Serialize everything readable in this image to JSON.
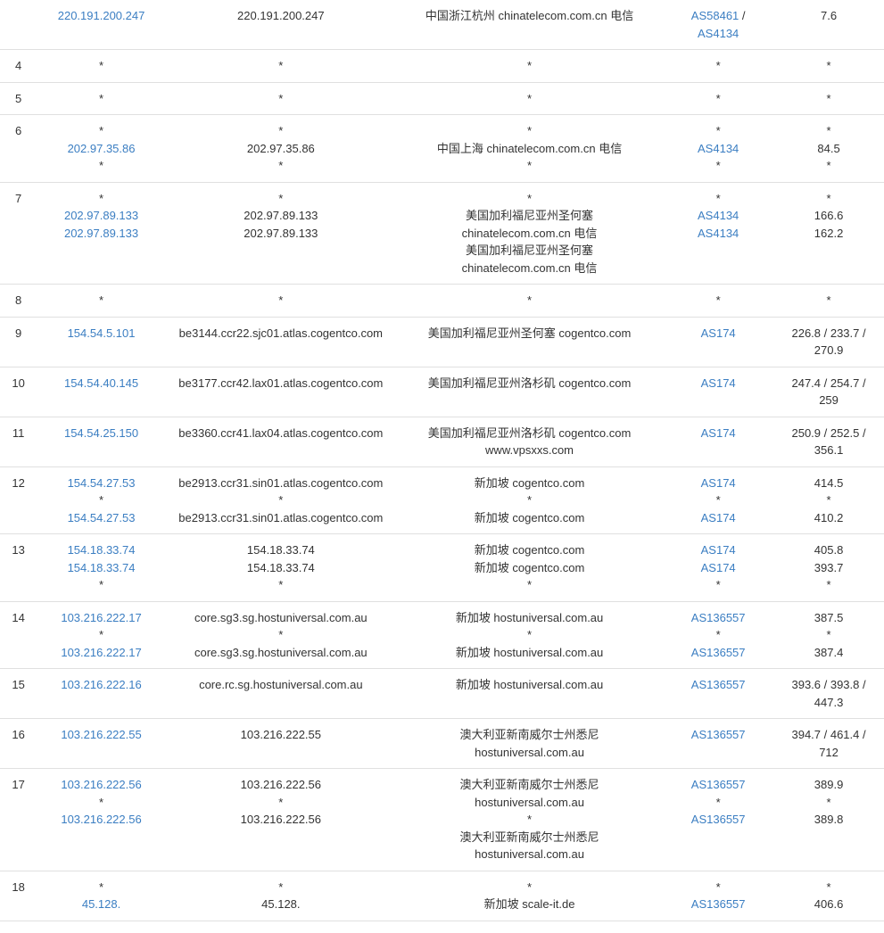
{
  "colors": {
    "link": "#3b7ec2",
    "border": "#e0e0e0",
    "text": "#333"
  },
  "rows": [
    {
      "hop": "",
      "ip": [
        {
          "t": "220.191.200.247",
          "link": true
        }
      ],
      "host": [
        {
          "t": "220.191.200.247"
        }
      ],
      "loc": [
        {
          "t": "中国浙江杭州 chinatelecom.com.cn 电信"
        }
      ],
      "as": [
        {
          "t": "AS58461",
          "link": true,
          "suffix": " /"
        },
        {
          "t": "AS4134",
          "link": true
        }
      ],
      "ms": [
        {
          "t": "7.6"
        }
      ]
    },
    {
      "hop": "4",
      "ip": [
        {
          "t": "*"
        }
      ],
      "host": [
        {
          "t": "*"
        }
      ],
      "loc": [
        {
          "t": "*"
        }
      ],
      "as": [
        {
          "t": "*"
        }
      ],
      "ms": [
        {
          "t": "*"
        }
      ]
    },
    {
      "hop": "5",
      "ip": [
        {
          "t": "*"
        }
      ],
      "host": [
        {
          "t": "*"
        }
      ],
      "loc": [
        {
          "t": "*"
        }
      ],
      "as": [
        {
          "t": "*"
        }
      ],
      "ms": [
        {
          "t": "*"
        }
      ]
    },
    {
      "hop": "6",
      "ip": [
        {
          "t": "*"
        },
        {
          "t": "202.97.35.86",
          "link": true
        },
        {
          "t": "*"
        }
      ],
      "host": [
        {
          "t": "*"
        },
        {
          "t": "202.97.35.86"
        },
        {
          "t": "*"
        }
      ],
      "loc": [
        {
          "t": "*"
        },
        {
          "t": "中国上海 chinatelecom.com.cn 电信"
        },
        {
          "t": "*"
        }
      ],
      "as": [
        {
          "t": "*"
        },
        {
          "t": "AS4134",
          "link": true
        },
        {
          "t": "*"
        }
      ],
      "ms": [
        {
          "t": "*"
        },
        {
          "t": "84.5"
        },
        {
          "t": "*"
        }
      ]
    },
    {
      "hop": "7",
      "ip": [
        {
          "t": "*"
        },
        {
          "t": "202.97.89.133",
          "link": true
        },
        {
          "t": "202.97.89.133",
          "link": true
        }
      ],
      "host": [
        {
          "t": "*"
        },
        {
          "t": "202.97.89.133"
        },
        {
          "t": "202.97.89.133"
        }
      ],
      "loc": [
        {
          "t": "*"
        },
        {
          "t": "美国加利福尼亚州圣何塞"
        },
        {
          "t": "chinatelecom.com.cn 电信"
        },
        {
          "t": "美国加利福尼亚州圣何塞"
        },
        {
          "t": "chinatelecom.com.cn 电信"
        }
      ],
      "as": [
        {
          "t": "*"
        },
        {
          "t": "AS4134",
          "link": true
        },
        {
          "t": "AS4134",
          "link": true
        }
      ],
      "ms": [
        {
          "t": "*"
        },
        {
          "t": "166.6"
        },
        {
          "t": "162.2"
        }
      ]
    },
    {
      "hop": "8",
      "ip": [
        {
          "t": "*"
        }
      ],
      "host": [
        {
          "t": "*"
        }
      ],
      "loc": [
        {
          "t": "*"
        }
      ],
      "as": [
        {
          "t": "*"
        }
      ],
      "ms": [
        {
          "t": "*"
        }
      ]
    },
    {
      "hop": "9",
      "ip": [
        {
          "t": "154.54.5.101",
          "link": true
        }
      ],
      "host": [
        {
          "t": "be3144.ccr22.sjc01.atlas.cogentco.com"
        }
      ],
      "loc": [
        {
          "t": "美国加利福尼亚州圣何塞 cogentco.com"
        }
      ],
      "as": [
        {
          "t": "AS174",
          "link": true
        }
      ],
      "ms": [
        {
          "t": "226.8 / 233.7 /"
        },
        {
          "t": "270.9"
        }
      ]
    },
    {
      "hop": "10",
      "ip": [
        {
          "t": "154.54.40.145",
          "link": true
        }
      ],
      "host": [
        {
          "t": "be3177.ccr42.lax01.atlas.cogentco.com"
        }
      ],
      "loc": [
        {
          "t": "美国加利福尼亚州洛杉矶 cogentco.com"
        }
      ],
      "as": [
        {
          "t": "AS174",
          "link": true
        }
      ],
      "ms": [
        {
          "t": "247.4 / 254.7 /"
        },
        {
          "t": "259"
        }
      ]
    },
    {
      "hop": "11",
      "ip": [
        {
          "t": "154.54.25.150",
          "link": true
        }
      ],
      "host": [
        {
          "t": "be3360.ccr41.lax04.atlas.cogentco.com"
        }
      ],
      "loc": [
        {
          "t": "美国加利福尼亚州洛杉矶 cogentco.com"
        },
        {
          "t": "www.vpsxxs.com"
        }
      ],
      "as": [
        {
          "t": "AS174",
          "link": true
        }
      ],
      "ms": [
        {
          "t": "250.9 / 252.5 /"
        },
        {
          "t": "356.1"
        }
      ]
    },
    {
      "hop": "12",
      "ip": [
        {
          "t": "154.54.27.53",
          "link": true
        },
        {
          "t": "*"
        },
        {
          "t": "154.54.27.53",
          "link": true
        }
      ],
      "host": [
        {
          "t": "be2913.ccr31.sin01.atlas.cogentco.com"
        },
        {
          "t": "*"
        },
        {
          "t": "be2913.ccr31.sin01.atlas.cogentco.com"
        }
      ],
      "loc": [
        {
          "t": "新加坡 cogentco.com"
        },
        {
          "t": "*"
        },
        {
          "t": "新加坡 cogentco.com"
        }
      ],
      "as": [
        {
          "t": "AS174",
          "link": true
        },
        {
          "t": "*"
        },
        {
          "t": "AS174",
          "link": true
        }
      ],
      "ms": [
        {
          "t": "414.5"
        },
        {
          "t": "*"
        },
        {
          "t": "410.2"
        }
      ]
    },
    {
      "hop": "13",
      "ip": [
        {
          "t": "154.18.33.74",
          "link": true
        },
        {
          "t": "154.18.33.74",
          "link": true
        },
        {
          "t": "*"
        }
      ],
      "host": [
        {
          "t": "154.18.33.74"
        },
        {
          "t": "154.18.33.74"
        },
        {
          "t": "*"
        }
      ],
      "loc": [
        {
          "t": "新加坡 cogentco.com"
        },
        {
          "t": "新加坡 cogentco.com"
        },
        {
          "t": "*"
        }
      ],
      "as": [
        {
          "t": "AS174",
          "link": true
        },
        {
          "t": "AS174",
          "link": true
        },
        {
          "t": "*"
        }
      ],
      "ms": [
        {
          "t": "405.8"
        },
        {
          "t": "393.7"
        },
        {
          "t": "*"
        }
      ]
    },
    {
      "hop": "14",
      "ip": [
        {
          "t": "103.216.222.17",
          "link": true
        },
        {
          "t": "*"
        },
        {
          "t": "103.216.222.17",
          "link": true
        }
      ],
      "host": [
        {
          "t": "core.sg3.sg.hostuniversal.com.au"
        },
        {
          "t": "*"
        },
        {
          "t": "core.sg3.sg.hostuniversal.com.au"
        }
      ],
      "loc": [
        {
          "t": "新加坡 hostuniversal.com.au"
        },
        {
          "t": "*"
        },
        {
          "t": "新加坡 hostuniversal.com.au"
        }
      ],
      "as": [
        {
          "t": "AS136557",
          "link": true
        },
        {
          "t": "*"
        },
        {
          "t": "AS136557",
          "link": true
        }
      ],
      "ms": [
        {
          "t": "387.5"
        },
        {
          "t": "*"
        },
        {
          "t": "387.4"
        }
      ]
    },
    {
      "hop": "15",
      "ip": [
        {
          "t": "103.216.222.16",
          "link": true
        }
      ],
      "host": [
        {
          "t": "core.rc.sg.hostuniversal.com.au"
        }
      ],
      "loc": [
        {
          "t": "新加坡 hostuniversal.com.au"
        }
      ],
      "as": [
        {
          "t": "AS136557",
          "link": true
        }
      ],
      "ms": [
        {
          "t": "393.6 / 393.8 /"
        },
        {
          "t": "447.3"
        }
      ]
    },
    {
      "hop": "16",
      "ip": [
        {
          "t": "103.216.222.55",
          "link": true
        }
      ],
      "host": [
        {
          "t": "103.216.222.55"
        }
      ],
      "loc": [
        {
          "t": "澳大利亚新南威尔士州悉尼"
        },
        {
          "t": "hostuniversal.com.au"
        }
      ],
      "as": [
        {
          "t": "AS136557",
          "link": true
        }
      ],
      "ms": [
        {
          "t": "394.7 / 461.4 /"
        },
        {
          "t": "712"
        }
      ]
    },
    {
      "hop": "17",
      "ip": [
        {
          "t": "103.216.222.56",
          "link": true
        },
        {
          "t": "*"
        },
        {
          "t": "103.216.222.56",
          "link": true
        }
      ],
      "host": [
        {
          "t": "103.216.222.56"
        },
        {
          "t": "*"
        },
        {
          "t": "103.216.222.56"
        }
      ],
      "loc": [
        {
          "t": "澳大利亚新南威尔士州悉尼"
        },
        {
          "t": "hostuniversal.com.au"
        },
        {
          "t": "*"
        },
        {
          "t": "澳大利亚新南威尔士州悉尼"
        },
        {
          "t": "hostuniversal.com.au"
        }
      ],
      "as": [
        {
          "t": "AS136557",
          "link": true
        },
        {
          "t": "*"
        },
        {
          "t": "AS136557",
          "link": true
        }
      ],
      "ms": [
        {
          "t": "389.9"
        },
        {
          "t": "*"
        },
        {
          "t": "389.8"
        }
      ]
    },
    {
      "hop": "18",
      "ip": [
        {
          "t": "*"
        },
        {
          "t": "45.128.",
          "link": true
        }
      ],
      "host": [
        {
          "t": "*"
        },
        {
          "t": "45.128."
        }
      ],
      "loc": [
        {
          "t": "*"
        },
        {
          "t": "新加坡 scale-it.de"
        }
      ],
      "as": [
        {
          "t": "*"
        },
        {
          "t": "AS136557",
          "link": true
        }
      ],
      "ms": [
        {
          "t": "*"
        },
        {
          "t": "406.6"
        }
      ]
    }
  ]
}
